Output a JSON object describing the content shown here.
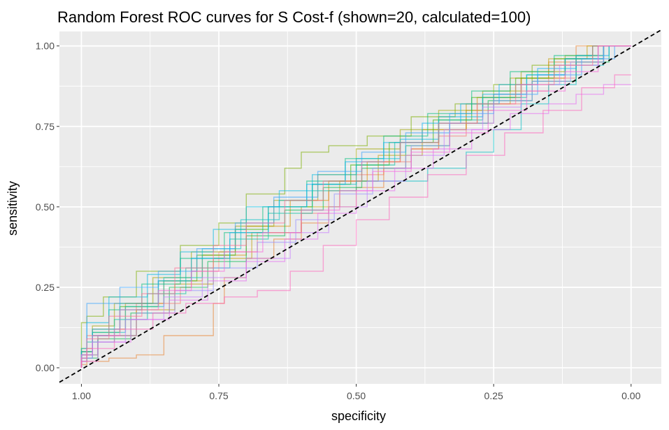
{
  "chart_data": {
    "type": "line",
    "title": "Random Forest ROC curves for S Cost-f (shown=20, calculated=100)",
    "xlabel": "specificity",
    "ylabel": "sensitivity",
    "x_reversed": true,
    "xlim": [
      1.04,
      -0.055
    ],
    "ylim": [
      -0.05,
      1.045
    ],
    "x_ticks": [
      1.0,
      0.75,
      0.5,
      0.25,
      0.0
    ],
    "x_tick_labels": [
      "1.00",
      "0.75",
      "0.50",
      "0.25",
      "0.00"
    ],
    "y_ticks": [
      0.0,
      0.25,
      0.5,
      0.75,
      1.0
    ],
    "y_tick_labels": [
      "0.00",
      "0.25",
      "0.50",
      "0.75",
      "1.00"
    ],
    "grid": true,
    "legend": "none",
    "panel_background": "#ebebeb",
    "reference_line": {
      "style": "dashed",
      "color": "#000000",
      "from": [
        1.04,
        -0.045
      ],
      "to": [
        -0.055,
        1.05
      ]
    },
    "series": [
      {
        "color": "#F8766D",
        "x": [
          1.0,
          0.99,
          0.9,
          0.82,
          0.8,
          0.75,
          0.68,
          0.6,
          0.55,
          0.5,
          0.45,
          0.4,
          0.35,
          0.3,
          0.25,
          0.2,
          0.15,
          0.1,
          0.05,
          0.0
        ],
        "y": [
          0.0,
          0.02,
          0.1,
          0.2,
          0.25,
          0.3,
          0.36,
          0.42,
          0.48,
          0.55,
          0.6,
          0.64,
          0.68,
          0.72,
          0.76,
          0.82,
          0.86,
          0.9,
          0.95,
          1.0
        ]
      },
      {
        "color": "#EA8331",
        "x": [
          1.0,
          0.99,
          0.95,
          0.9,
          0.85,
          0.76,
          0.74,
          0.7,
          0.65,
          0.6,
          0.55,
          0.5,
          0.45,
          0.4,
          0.35,
          0.3,
          0.25,
          0.2,
          0.15,
          0.1,
          0.0
        ],
        "y": [
          0.0,
          0.01,
          0.02,
          0.03,
          0.04,
          0.1,
          0.2,
          0.28,
          0.34,
          0.4,
          0.45,
          0.5,
          0.56,
          0.62,
          0.68,
          0.74,
          0.8,
          0.85,
          0.9,
          0.95,
          1.0
        ]
      },
      {
        "color": "#D89000",
        "x": [
          1.0,
          0.98,
          0.92,
          0.85,
          0.78,
          0.7,
          0.62,
          0.55,
          0.48,
          0.42,
          0.35,
          0.28,
          0.2,
          0.12,
          0.05,
          0.0
        ],
        "y": [
          0.0,
          0.05,
          0.12,
          0.2,
          0.27,
          0.35,
          0.44,
          0.52,
          0.58,
          0.64,
          0.7,
          0.76,
          0.84,
          0.9,
          0.96,
          1.0
        ]
      },
      {
        "color": "#C09B00",
        "x": [
          1.0,
          0.97,
          0.9,
          0.83,
          0.76,
          0.69,
          0.6,
          0.53,
          0.46,
          0.38,
          0.3,
          0.22,
          0.15,
          0.08,
          0.0
        ],
        "y": [
          0.0,
          0.04,
          0.1,
          0.18,
          0.26,
          0.34,
          0.42,
          0.5,
          0.58,
          0.66,
          0.74,
          0.82,
          0.9,
          0.96,
          1.0
        ]
      },
      {
        "color": "#A3A500",
        "x": [
          1.0,
          0.98,
          0.94,
          0.87,
          0.8,
          0.72,
          0.65,
          0.57,
          0.5,
          0.42,
          0.35,
          0.27,
          0.2,
          0.12,
          0.06,
          0.0
        ],
        "y": [
          0.0,
          0.06,
          0.13,
          0.2,
          0.28,
          0.36,
          0.44,
          0.52,
          0.6,
          0.68,
          0.74,
          0.8,
          0.86,
          0.92,
          0.97,
          1.0
        ]
      },
      {
        "color": "#7CAE00",
        "x": [
          1.0,
          0.99,
          0.96,
          0.9,
          0.82,
          0.75,
          0.7,
          0.63,
          0.6,
          0.55,
          0.48,
          0.4,
          0.32,
          0.25,
          0.18,
          0.1,
          0.05,
          0.0
        ],
        "y": [
          0.0,
          0.14,
          0.16,
          0.22,
          0.3,
          0.38,
          0.45,
          0.54,
          0.62,
          0.67,
          0.69,
          0.72,
          0.78,
          0.82,
          0.88,
          0.94,
          0.97,
          1.0
        ]
      },
      {
        "color": "#39B600",
        "x": [
          1.0,
          0.98,
          0.93,
          0.86,
          0.79,
          0.72,
          0.66,
          0.58,
          0.51,
          0.44,
          0.36,
          0.29,
          0.21,
          0.14,
          0.07,
          0.0
        ],
        "y": [
          0.0,
          0.05,
          0.11,
          0.19,
          0.27,
          0.35,
          0.43,
          0.5,
          0.57,
          0.63,
          0.7,
          0.77,
          0.84,
          0.9,
          0.96,
          1.0
        ]
      },
      {
        "color": "#00BB4E",
        "x": [
          1.0,
          0.97,
          0.91,
          0.84,
          0.77,
          0.7,
          0.63,
          0.56,
          0.49,
          0.41,
          0.33,
          0.26,
          0.18,
          0.1,
          0.04,
          0.0
        ],
        "y": [
          0.0,
          0.03,
          0.09,
          0.17,
          0.25,
          0.33,
          0.41,
          0.49,
          0.56,
          0.62,
          0.69,
          0.76,
          0.83,
          0.89,
          0.95,
          1.0
        ]
      },
      {
        "color": "#00BF7D",
        "x": [
          1.0,
          0.98,
          0.95,
          0.89,
          0.82,
          0.74,
          0.67,
          0.59,
          0.52,
          0.45,
          0.37,
          0.29,
          0.22,
          0.14,
          0.07,
          0.0
        ],
        "y": [
          0.0,
          0.04,
          0.1,
          0.18,
          0.26,
          0.34,
          0.42,
          0.5,
          0.58,
          0.65,
          0.72,
          0.79,
          0.86,
          0.92,
          0.97,
          1.0
        ]
      },
      {
        "color": "#00C1A3",
        "x": [
          1.0,
          0.99,
          0.94,
          0.88,
          0.81,
          0.73,
          0.66,
          0.58,
          0.5,
          0.43,
          0.35,
          0.27,
          0.19,
          0.12,
          0.05,
          0.0
        ],
        "y": [
          0.0,
          0.02,
          0.08,
          0.15,
          0.23,
          0.31,
          0.4,
          0.48,
          0.55,
          0.63,
          0.7,
          0.77,
          0.84,
          0.91,
          0.96,
          1.0
        ]
      },
      {
        "color": "#00BFC4",
        "x": [
          1.0,
          0.98,
          0.92,
          0.85,
          0.78,
          0.71,
          0.64,
          0.58,
          0.5,
          0.44,
          0.37,
          0.3,
          0.25,
          0.2,
          0.15,
          0.1,
          0.05,
          0.0
        ],
        "y": [
          0.0,
          0.03,
          0.11,
          0.19,
          0.28,
          0.37,
          0.46,
          0.52,
          0.57,
          0.58,
          0.58,
          0.62,
          0.67,
          0.74,
          0.82,
          0.88,
          0.94,
          1.0
        ]
      },
      {
        "color": "#00BAE0",
        "x": [
          1.0,
          0.99,
          0.95,
          0.88,
          0.82,
          0.76,
          0.7,
          0.64,
          0.58,
          0.5,
          0.42,
          0.35,
          0.27,
          0.19,
          0.12,
          0.05,
          0.0
        ],
        "y": [
          0.0,
          0.06,
          0.14,
          0.22,
          0.29,
          0.36,
          0.43,
          0.5,
          0.55,
          0.6,
          0.65,
          0.71,
          0.78,
          0.85,
          0.91,
          0.96,
          1.0
        ]
      },
      {
        "color": "#00B0F6",
        "x": [
          1.0,
          0.98,
          0.93,
          0.86,
          0.8,
          0.73,
          0.66,
          0.59,
          0.52,
          0.45,
          0.38,
          0.31,
          0.24,
          0.17,
          0.1,
          0.04,
          0.0
        ],
        "y": [
          0.0,
          0.05,
          0.12,
          0.2,
          0.27,
          0.34,
          0.42,
          0.5,
          0.57,
          0.64,
          0.7,
          0.76,
          0.82,
          0.88,
          0.93,
          0.97,
          1.0
        ]
      },
      {
        "color": "#35A2FF",
        "x": [
          1.0,
          0.99,
          0.93,
          0.86,
          0.79,
          0.72,
          0.65,
          0.57,
          0.49,
          0.41,
          0.33,
          0.25,
          0.17,
          0.09,
          0.03,
          0.0
        ],
        "y": [
          0.0,
          0.03,
          0.2,
          0.25,
          0.3,
          0.37,
          0.45,
          0.53,
          0.61,
          0.67,
          0.73,
          0.79,
          0.85,
          0.91,
          0.96,
          1.0
        ]
      },
      {
        "color": "#9590FF",
        "x": [
          1.0,
          0.97,
          0.9,
          0.83,
          0.76,
          0.68,
          0.61,
          0.54,
          0.47,
          0.4,
          0.33,
          0.25,
          0.18,
          0.11,
          0.05,
          0.0
        ],
        "y": [
          0.0,
          0.04,
          0.1,
          0.17,
          0.24,
          0.31,
          0.39,
          0.46,
          0.54,
          0.62,
          0.69,
          0.76,
          0.83,
          0.89,
          0.95,
          1.0
        ]
      },
      {
        "color": "#C77CFF",
        "x": [
          1.0,
          0.98,
          0.92,
          0.85,
          0.78,
          0.7,
          0.62,
          0.55,
          0.48,
          0.41,
          0.34,
          0.27,
          0.2,
          0.13,
          0.06,
          0.0
        ],
        "y": [
          0.0,
          0.03,
          0.08,
          0.15,
          0.22,
          0.28,
          0.34,
          0.42,
          0.5,
          0.58,
          0.66,
          0.74,
          0.81,
          0.88,
          0.94,
          1.0
        ]
      },
      {
        "color": "#E76BF3",
        "x": [
          1.0,
          0.97,
          0.91,
          0.84,
          0.77,
          0.7,
          0.63,
          0.57,
          0.5,
          0.43,
          0.36,
          0.29,
          0.22,
          0.15,
          0.1,
          0.05,
          0.0
        ],
        "y": [
          0.0,
          0.02,
          0.08,
          0.15,
          0.21,
          0.27,
          0.33,
          0.4,
          0.48,
          0.55,
          0.62,
          0.68,
          0.74,
          0.79,
          0.82,
          0.85,
          0.88
        ]
      },
      {
        "color": "#FA62DB",
        "x": [
          1.0,
          0.98,
          0.93,
          0.86,
          0.8,
          0.74,
          0.67,
          0.6,
          0.53,
          0.47,
          0.4,
          0.33,
          0.26,
          0.19,
          0.12,
          0.06,
          0.0
        ],
        "y": [
          0.0,
          0.04,
          0.1,
          0.18,
          0.24,
          0.3,
          0.36,
          0.42,
          0.49,
          0.55,
          0.61,
          0.67,
          0.73,
          0.8,
          0.86,
          0.92,
          1.0
        ]
      },
      {
        "color": "#FF62BC",
        "x": [
          1.0,
          0.99,
          0.94,
          0.87,
          0.81,
          0.74,
          0.68,
          0.62,
          0.56,
          0.5,
          0.44,
          0.37,
          0.3,
          0.23,
          0.16,
          0.09,
          0.03,
          0.0
        ],
        "y": [
          0.0,
          0.02,
          0.06,
          0.12,
          0.17,
          0.2,
          0.22,
          0.24,
          0.3,
          0.38,
          0.46,
          0.53,
          0.6,
          0.66,
          0.73,
          0.8,
          0.87,
          0.91
        ]
      },
      {
        "color": "#FF6C91",
        "x": [
          1.0,
          0.99,
          0.95,
          0.89,
          0.83,
          0.76,
          0.7,
          0.63,
          0.56,
          0.49,
          0.42,
          0.35,
          0.28,
          0.21,
          0.14,
          0.07,
          0.0
        ],
        "y": [
          0.0,
          0.03,
          0.09,
          0.16,
          0.23,
          0.31,
          0.38,
          0.45,
          0.52,
          0.58,
          0.64,
          0.7,
          0.76,
          0.82,
          0.88,
          0.94,
          1.0
        ]
      }
    ]
  }
}
